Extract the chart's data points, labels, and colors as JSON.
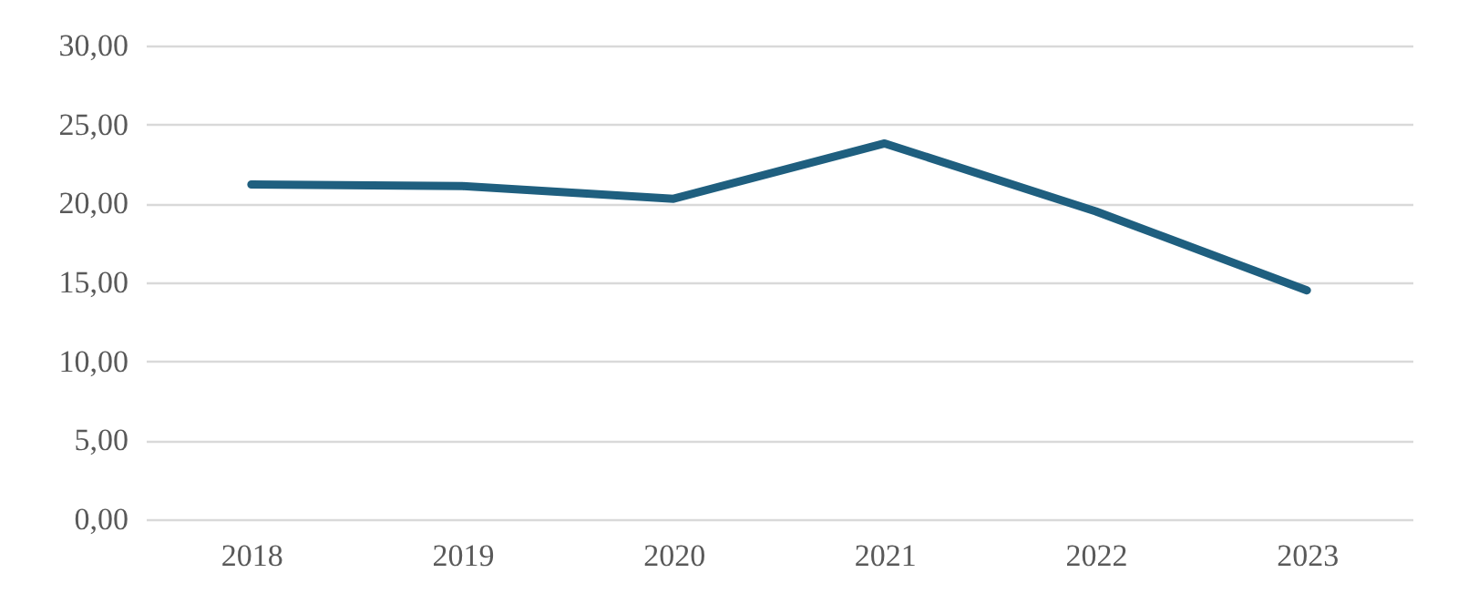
{
  "chart_data": {
    "type": "line",
    "categories": [
      "2018",
      "2019",
      "2020",
      "2021",
      "2022",
      "2023"
    ],
    "series": [
      {
        "color": "#1f5f7f",
        "values": [
          21.2,
          21.1,
          20.3,
          23.8,
          19.5,
          14.5
        ]
      }
    ],
    "ylim": [
      0,
      30
    ],
    "yticks": [
      {
        "value": 0,
        "label": "0,00"
      },
      {
        "value": 5,
        "label": "5,00"
      },
      {
        "value": 10,
        "label": "10,00"
      },
      {
        "value": 15,
        "label": "15,00"
      },
      {
        "value": 20,
        "label": "20,00"
      },
      {
        "value": 25,
        "label": "25,00"
      },
      {
        "value": 30,
        "label": "30,00"
      }
    ],
    "grid": "y",
    "legend": false,
    "marker": "none",
    "line_style": "solid"
  }
}
